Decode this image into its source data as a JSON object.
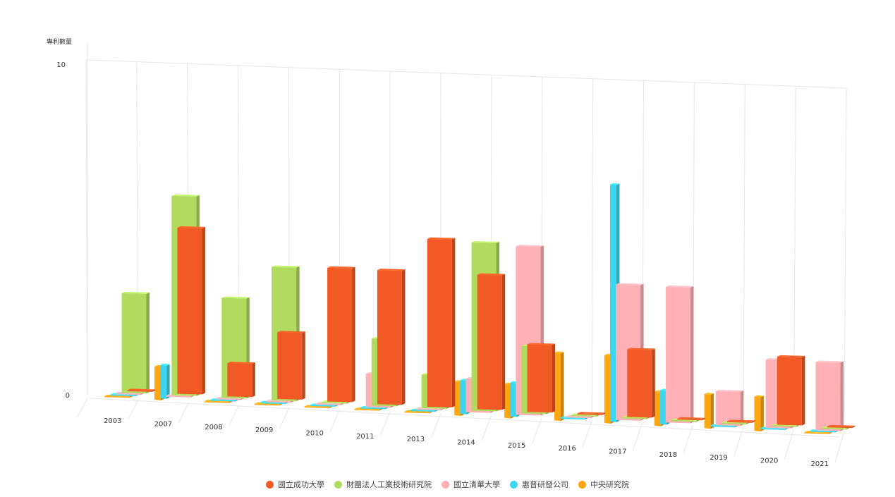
{
  "chart_data": {
    "type": "bar",
    "view": "3d-perspective",
    "ylabel": "專利數量",
    "ylim": [
      0,
      10
    ],
    "yticks": [
      0,
      10
    ],
    "categories": [
      "2003",
      "2007",
      "2008",
      "2009",
      "2010",
      "2011",
      "2013",
      "2014",
      "2015",
      "2016",
      "2017",
      "2018",
      "2019",
      "2020",
      "2021"
    ],
    "series": [
      {
        "name": "國立成功大學",
        "color": "#F15A24",
        "values": [
          0,
          5,
          1,
          2,
          4,
          4,
          5,
          4,
          2,
          0,
          2,
          0,
          0,
          2,
          0
        ]
      },
      {
        "name": "財團法人工業技術研究院",
        "color": "#B0DB5E",
        "values": [
          3,
          6,
          3,
          4,
          0,
          2,
          1,
          5,
          2,
          0,
          0,
          0,
          0,
          0,
          0
        ]
      },
      {
        "name": "國立清華大學",
        "color": "#FFB1B5",
        "values": [
          0,
          0,
          0,
          0,
          0,
          1,
          0,
          1,
          5,
          0,
          4,
          4,
          1,
          2,
          2
        ]
      },
      {
        "name": "惠普研發公司",
        "color": "#3DD6F0",
        "values": [
          0,
          1,
          0,
          0,
          0,
          0,
          0,
          1,
          1,
          0,
          7,
          1,
          0,
          0,
          0
        ]
      },
      {
        "name": "中央研究院",
        "color": "#FFA611",
        "values": [
          0,
          1,
          0,
          0,
          0,
          0,
          0,
          1,
          1,
          2,
          2,
          1,
          1,
          1,
          0
        ]
      }
    ],
    "grid": true,
    "legend_position": "bottom-center"
  }
}
